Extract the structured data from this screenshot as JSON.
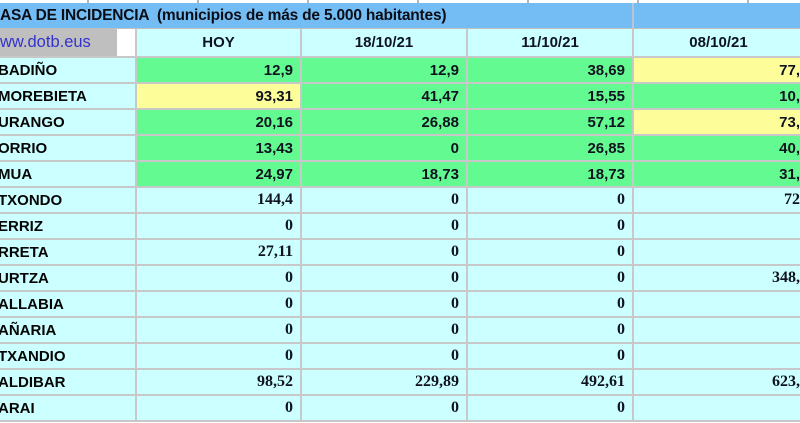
{
  "title": {
    "text": "ASA DE INCIDENCIA  (municipios de más de 5.000 habitantes)"
  },
  "link": {
    "text": "ww.dotb.eus"
  },
  "table": {
    "columns": [
      "HOY",
      "18/10/21",
      "11/10/21",
      "08/10/21"
    ],
    "rows": [
      {
        "municipality": "BADIÑO",
        "values": [
          "12,9",
          "12,9",
          "38,69",
          "77,"
        ],
        "fills": [
          "green",
          "green",
          "green",
          "yellow"
        ]
      },
      {
        "municipality": "MOREBIETA",
        "values": [
          "93,31",
          "41,47",
          "15,55",
          "10,"
        ],
        "fills": [
          "yellow",
          "green",
          "green",
          "green"
        ]
      },
      {
        "municipality": "URANGO",
        "values": [
          "20,16",
          "26,88",
          "57,12",
          "73,"
        ],
        "fills": [
          "green",
          "green",
          "green",
          "yellow"
        ]
      },
      {
        "municipality": "ORRIO",
        "values": [
          "13,43",
          "0",
          "26,85",
          "40,"
        ],
        "fills": [
          "green",
          "green",
          "green",
          "green"
        ]
      },
      {
        "municipality": "MUA",
        "values": [
          "24,97",
          "18,73",
          "18,73",
          "31,"
        ],
        "fills": [
          "green",
          "green",
          "green",
          "green"
        ]
      },
      {
        "municipality": "TXONDO",
        "values": [
          "144,4",
          "0",
          "0",
          "72"
        ],
        "fills": [
          "plain",
          "plain",
          "plain",
          "plain"
        ]
      },
      {
        "municipality": "ERRIZ",
        "values": [
          "0",
          "0",
          "0",
          ""
        ],
        "fills": [
          "plain",
          "plain",
          "plain",
          "plain"
        ]
      },
      {
        "municipality": "RRETA",
        "values": [
          "27,11",
          "0",
          "0",
          ""
        ],
        "fills": [
          "plain",
          "plain",
          "plain",
          "plain"
        ]
      },
      {
        "municipality": "URTZA",
        "values": [
          "0",
          "0",
          "0",
          "348,"
        ],
        "fills": [
          "plain",
          "plain",
          "plain",
          "plain"
        ]
      },
      {
        "municipality": "ALLABIA",
        "values": [
          "0",
          "0",
          "0",
          ""
        ],
        "fills": [
          "plain",
          "plain",
          "plain",
          "plain"
        ]
      },
      {
        "municipality": "AÑARIA",
        "values": [
          "0",
          "0",
          "0",
          ""
        ],
        "fills": [
          "plain",
          "plain",
          "plain",
          "plain"
        ]
      },
      {
        "municipality": "TXANDIO",
        "values": [
          "0",
          "0",
          "0",
          ""
        ],
        "fills": [
          "plain",
          "plain",
          "plain",
          "plain"
        ]
      },
      {
        "municipality": "ALDIBAR",
        "values": [
          "98,52",
          "229,89",
          "492,61",
          "623,"
        ],
        "fills": [
          "plain",
          "plain",
          "plain",
          "plain"
        ]
      },
      {
        "municipality": "ARAI",
        "values": [
          "0",
          "0",
          "0",
          ""
        ],
        "fills": [
          "plain",
          "plain",
          "plain",
          "plain"
        ]
      }
    ]
  },
  "colors": {
    "header_blue": "#74bdf4",
    "cell_cyan": "#ccffff",
    "cell_green": "#63fa92",
    "cell_yellow": "#fdfd99",
    "link_cell_gray": "#bfbfbf",
    "link_text_blue": "#3333cc",
    "gridline_gray": "#c8c8c8"
  }
}
